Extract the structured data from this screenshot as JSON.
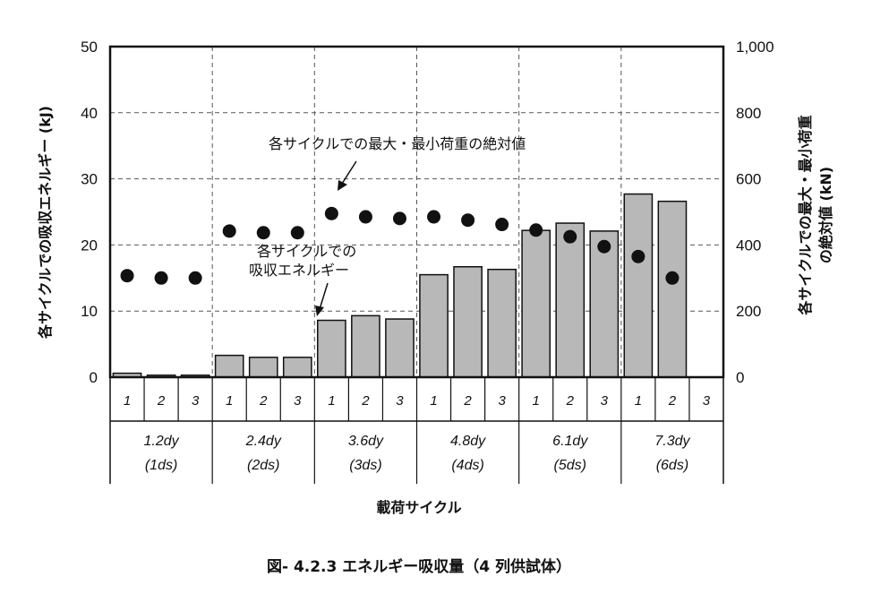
{
  "chart_data": {
    "type": "bar",
    "caption": "図- 4.2.3 エネルギー吸収量（4 列供試体）",
    "xlabel": "載荷サイクル",
    "ylabel_left": "各サイクルでの吸収エネルギー (kJ)",
    "ylabel_right_line1": "各サイクルでの最大・最小荷重",
    "ylabel_right_line2": "の絶対値 (kN)",
    "left_axis": {
      "min": 0,
      "max": 50,
      "ticks": [
        "0",
        "10",
        "20",
        "30",
        "40",
        "50"
      ]
    },
    "right_axis": {
      "min": 0,
      "max": 1000,
      "ticks": [
        "0",
        "200",
        "400",
        "600",
        "800",
        "1,000"
      ]
    },
    "grid": true,
    "cycles": [
      "1",
      "2",
      "3",
      "1",
      "2",
      "3",
      "1",
      "2",
      "3",
      "1",
      "2",
      "3",
      "1",
      "2",
      "3",
      "1",
      "2",
      "3"
    ],
    "groups": [
      {
        "label1": "1.2dy",
        "label2": "(1ds)"
      },
      {
        "label1": "2.4dy",
        "label2": "(2ds)"
      },
      {
        "label1": "3.6dy",
        "label2": "(3ds)"
      },
      {
        "label1": "4.8dy",
        "label2": "(4ds)"
      },
      {
        "label1": "6.1dy",
        "label2": "(5ds)"
      },
      {
        "label1": "7.3dy",
        "label2": "(6ds)"
      }
    ],
    "series": [
      {
        "name": "各サイクルでの吸収エネルギー",
        "axis": "left",
        "kind": "bar",
        "values": [
          0.6,
          0.3,
          0.3,
          3.3,
          3.0,
          3.0,
          8.6,
          9.3,
          8.8,
          15.5,
          16.7,
          16.3,
          22.2,
          23.3,
          22.1,
          27.7,
          26.6,
          null
        ]
      },
      {
        "name": "各サイクルでの最大・最小荷重の絶対値",
        "axis": "right",
        "kind": "scatter",
        "values": [
          307,
          300,
          300,
          442,
          437,
          437,
          495,
          485,
          480,
          485,
          475,
          462,
          445,
          425,
          395,
          365,
          300,
          null
        ]
      }
    ],
    "annotations": {
      "max_load_label": "各サイクルでの最大・最小荷重の絶対値",
      "energy_label_line1": "各サイクルでの",
      "energy_label_line2": "吸収エネルギー"
    }
  }
}
